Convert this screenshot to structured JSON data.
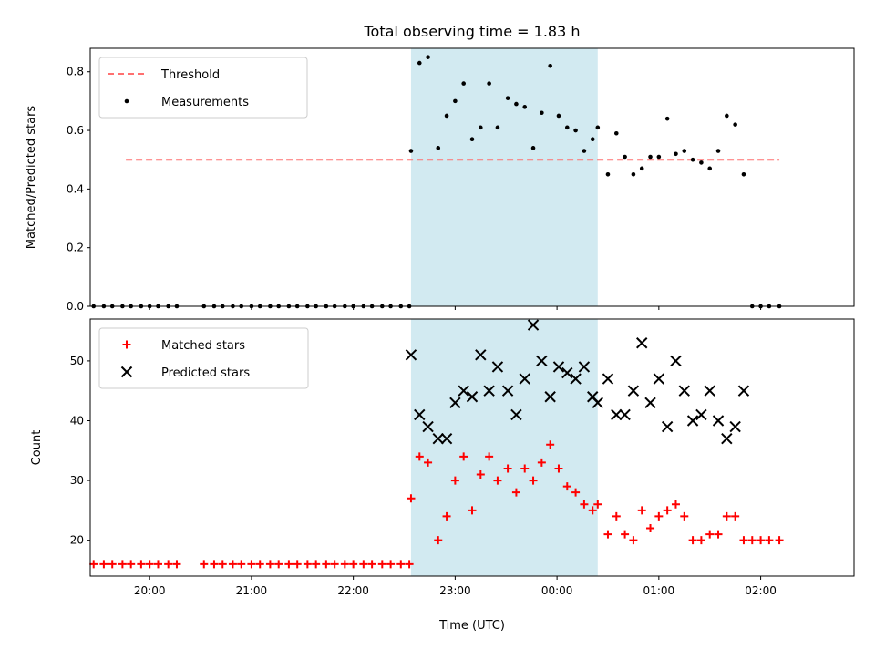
{
  "chart_data": {
    "title": "Total observing time = 1.83 h",
    "xlabel": "Time (UTC)",
    "x_ticks": [
      "20:00",
      "21:00",
      "22:00",
      "23:00",
      "00:00",
      "01:00",
      "02:00"
    ],
    "x_range": [
      "19:25",
      "02:55"
    ],
    "highlight_span": {
      "start": "22:34",
      "end": "00:24",
      "color": "#add8e6"
    },
    "panels": [
      {
        "type": "scatter",
        "ylabel": "Matched/Predicted stars",
        "ylim": [
          0,
          0.88
        ],
        "yticks": [
          "0.0",
          "0.2",
          "0.4",
          "0.6",
          "0.8"
        ],
        "legend": "top-left",
        "threshold": {
          "name": "Threshold",
          "value": 0.5,
          "x_start": "19:46",
          "x_end": "02:11",
          "color": "#ff7070"
        },
        "series": [
          {
            "name": "Measurements",
            "color": "#000000",
            "marker": "dot",
            "points": [
              [
                "19:27",
                0
              ],
              [
                "19:33",
                0
              ],
              [
                "19:38",
                0
              ],
              [
                "19:44",
                0
              ],
              [
                "19:49",
                0
              ],
              [
                "19:55",
                0
              ],
              [
                "20:00",
                0
              ],
              [
                "20:05",
                0
              ],
              [
                "20:11",
                0
              ],
              [
                "20:16",
                0
              ],
              [
                "20:32",
                0
              ],
              [
                "20:38",
                0
              ],
              [
                "20:43",
                0
              ],
              [
                "20:49",
                0
              ],
              [
                "20:54",
                0
              ],
              [
                "21:00",
                0
              ],
              [
                "21:05",
                0
              ],
              [
                "21:11",
                0
              ],
              [
                "21:16",
                0
              ],
              [
                "21:22",
                0
              ],
              [
                "21:27",
                0
              ],
              [
                "21:33",
                0
              ],
              [
                "21:38",
                0
              ],
              [
                "21:44",
                0
              ],
              [
                "21:49",
                0
              ],
              [
                "21:55",
                0
              ],
              [
                "22:00",
                0
              ],
              [
                "22:06",
                0
              ],
              [
                "22:11",
                0
              ],
              [
                "22:17",
                0
              ],
              [
                "22:22",
                0
              ],
              [
                "22:28",
                0
              ],
              [
                "22:33",
                0
              ],
              [
                "22:34",
                0.53
              ],
              [
                "22:39",
                0.83
              ],
              [
                "22:44",
                0.85
              ],
              [
                "22:50",
                0.54
              ],
              [
                "22:55",
                0.65
              ],
              [
                "23:00",
                0.7
              ],
              [
                "23:05",
                0.76
              ],
              [
                "23:10",
                0.57
              ],
              [
                "23:15",
                0.61
              ],
              [
                "23:20",
                0.76
              ],
              [
                "23:25",
                0.61
              ],
              [
                "23:31",
                0.71
              ],
              [
                "23:36",
                0.69
              ],
              [
                "23:41",
                0.68
              ],
              [
                "23:46",
                0.54
              ],
              [
                "23:51",
                0.66
              ],
              [
                "23:56",
                0.82
              ],
              [
                "00:01",
                0.65
              ],
              [
                "00:06",
                0.61
              ],
              [
                "00:11",
                0.6
              ],
              [
                "00:16",
                0.53
              ],
              [
                "00:21",
                0.57
              ],
              [
                "00:24",
                0.61
              ],
              [
                "00:30",
                0.45
              ],
              [
                "00:35",
                0.59
              ],
              [
                "00:40",
                0.51
              ],
              [
                "00:45",
                0.45
              ],
              [
                "00:50",
                0.47
              ],
              [
                "00:55",
                0.51
              ],
              [
                "01:00",
                0.51
              ],
              [
                "01:05",
                0.64
              ],
              [
                "01:10",
                0.52
              ],
              [
                "01:15",
                0.53
              ],
              [
                "01:20",
                0.5
              ],
              [
                "01:25",
                0.49
              ],
              [
                "01:30",
                0.47
              ],
              [
                "01:35",
                0.53
              ],
              [
                "01:40",
                0.65
              ],
              [
                "01:45",
                0.62
              ],
              [
                "01:50",
                0.45
              ],
              [
                "01:55",
                0
              ],
              [
                "02:00",
                0
              ],
              [
                "02:05",
                0
              ],
              [
                "02:11",
                0
              ]
            ]
          }
        ]
      },
      {
        "type": "scatter",
        "ylabel": "Count",
        "ylim": [
          14,
          57
        ],
        "yticks": [
          "20",
          "30",
          "40",
          "50"
        ],
        "legend": "top-left",
        "series": [
          {
            "name": "Matched stars",
            "color": "#ff0000",
            "marker": "plus",
            "points": [
              [
                "19:27",
                16
              ],
              [
                "19:33",
                16
              ],
              [
                "19:38",
                16
              ],
              [
                "19:44",
                16
              ],
              [
                "19:49",
                16
              ],
              [
                "19:55",
                16
              ],
              [
                "20:00",
                16
              ],
              [
                "20:05",
                16
              ],
              [
                "20:11",
                16
              ],
              [
                "20:16",
                16
              ],
              [
                "20:32",
                16
              ],
              [
                "20:38",
                16
              ],
              [
                "20:43",
                16
              ],
              [
                "20:49",
                16
              ],
              [
                "20:54",
                16
              ],
              [
                "21:00",
                16
              ],
              [
                "21:05",
                16
              ],
              [
                "21:11",
                16
              ],
              [
                "21:16",
                16
              ],
              [
                "21:22",
                16
              ],
              [
                "21:27",
                16
              ],
              [
                "21:33",
                16
              ],
              [
                "21:38",
                16
              ],
              [
                "21:44",
                16
              ],
              [
                "21:49",
                16
              ],
              [
                "21:55",
                16
              ],
              [
                "22:00",
                16
              ],
              [
                "22:06",
                16
              ],
              [
                "22:11",
                16
              ],
              [
                "22:17",
                16
              ],
              [
                "22:22",
                16
              ],
              [
                "22:28",
                16
              ],
              [
                "22:33",
                16
              ],
              [
                "22:34",
                27
              ],
              [
                "22:39",
                34
              ],
              [
                "22:44",
                33
              ],
              [
                "22:50",
                20
              ],
              [
                "22:55",
                24
              ],
              [
                "23:00",
                30
              ],
              [
                "23:05",
                34
              ],
              [
                "23:10",
                25
              ],
              [
                "23:15",
                31
              ],
              [
                "23:20",
                34
              ],
              [
                "23:25",
                30
              ],
              [
                "23:31",
                32
              ],
              [
                "23:36",
                28
              ],
              [
                "23:41",
                32
              ],
              [
                "23:46",
                30
              ],
              [
                "23:51",
                33
              ],
              [
                "23:56",
                36
              ],
              [
                "00:01",
                32
              ],
              [
                "00:06",
                29
              ],
              [
                "00:11",
                28
              ],
              [
                "00:16",
                26
              ],
              [
                "00:21",
                25
              ],
              [
                "00:24",
                26
              ],
              [
                "00:30",
                21
              ],
              [
                "00:35",
                24
              ],
              [
                "00:40",
                21
              ],
              [
                "00:45",
                20
              ],
              [
                "00:50",
                25
              ],
              [
                "00:55",
                22
              ],
              [
                "01:00",
                24
              ],
              [
                "01:05",
                25
              ],
              [
                "01:10",
                26
              ],
              [
                "01:15",
                24
              ],
              [
                "01:20",
                20
              ],
              [
                "01:25",
                20
              ],
              [
                "01:30",
                21
              ],
              [
                "01:35",
                21
              ],
              [
                "01:40",
                24
              ],
              [
                "01:45",
                24
              ],
              [
                "01:50",
                20
              ],
              [
                "01:55",
                20
              ],
              [
                "02:00",
                20
              ],
              [
                "02:05",
                20
              ],
              [
                "02:11",
                20
              ]
            ]
          },
          {
            "name": "Predicted stars",
            "color": "#000000",
            "marker": "x",
            "points": [
              [
                "22:34",
                51
              ],
              [
                "22:39",
                41
              ],
              [
                "22:44",
                39
              ],
              [
                "22:50",
                37
              ],
              [
                "22:55",
                37
              ],
              [
                "23:00",
                43
              ],
              [
                "23:05",
                45
              ],
              [
                "23:10",
                44
              ],
              [
                "23:15",
                51
              ],
              [
                "23:20",
                45
              ],
              [
                "23:25",
                49
              ],
              [
                "23:31",
                45
              ],
              [
                "23:36",
                41
              ],
              [
                "23:41",
                47
              ],
              [
                "23:46",
                56
              ],
              [
                "23:51",
                50
              ],
              [
                "23:56",
                44
              ],
              [
                "00:01",
                49
              ],
              [
                "00:06",
                48
              ],
              [
                "00:11",
                47
              ],
              [
                "00:16",
                49
              ],
              [
                "00:21",
                44
              ],
              [
                "00:24",
                43
              ],
              [
                "00:30",
                47
              ],
              [
                "00:35",
                41
              ],
              [
                "00:40",
                41
              ],
              [
                "00:45",
                45
              ],
              [
                "00:50",
                53
              ],
              [
                "00:55",
                43
              ],
              [
                "01:00",
                47
              ],
              [
                "01:05",
                39
              ],
              [
                "01:10",
                50
              ],
              [
                "01:15",
                45
              ],
              [
                "01:20",
                40
              ],
              [
                "01:25",
                41
              ],
              [
                "01:30",
                45
              ],
              [
                "01:35",
                40
              ],
              [
                "01:40",
                37
              ],
              [
                "01:45",
                39
              ],
              [
                "01:50",
                45
              ]
            ]
          }
        ]
      }
    ]
  }
}
